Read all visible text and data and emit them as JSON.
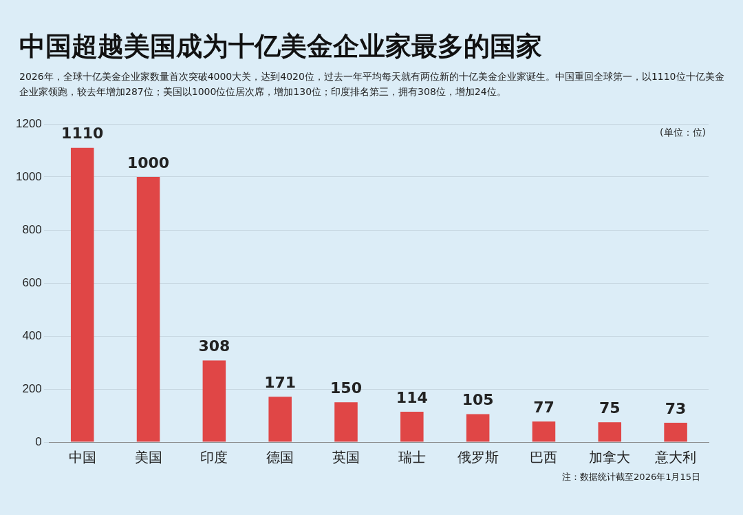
{
  "chart_data": {
    "type": "bar",
    "title": "中国超越美国成为十亿美金企业家最多的国家",
    "subtitle": "2026年，全球十亿美金企业家数量首次突破4000大关，达到4020位，过去一年平均每天就有两位新的十亿美金企业家诞生。中国重回全球第一，以1110位十亿美金企业家领跑，较去年增加287位；美国以1000位位居次席，增加130位；印度排名第三，拥有308位，增加24位。",
    "categories": [
      "中国",
      "美国",
      "印度",
      "德国",
      "英国",
      "瑞士",
      "俄罗斯",
      "巴西",
      "加拿大",
      "意大利"
    ],
    "values": [
      1110,
      1000,
      308,
      171,
      150,
      114,
      105,
      77,
      75,
      73
    ],
    "color": "#e04646",
    "ylim": [
      0,
      1200
    ],
    "yticks": [
      0,
      200,
      400,
      600,
      800,
      1000,
      1200
    ],
    "grid": "y",
    "data_labels": true,
    "legend": false,
    "annotations": [
      "(单位：位)",
      "注：数据统计截至2026年1月15日"
    ]
  }
}
